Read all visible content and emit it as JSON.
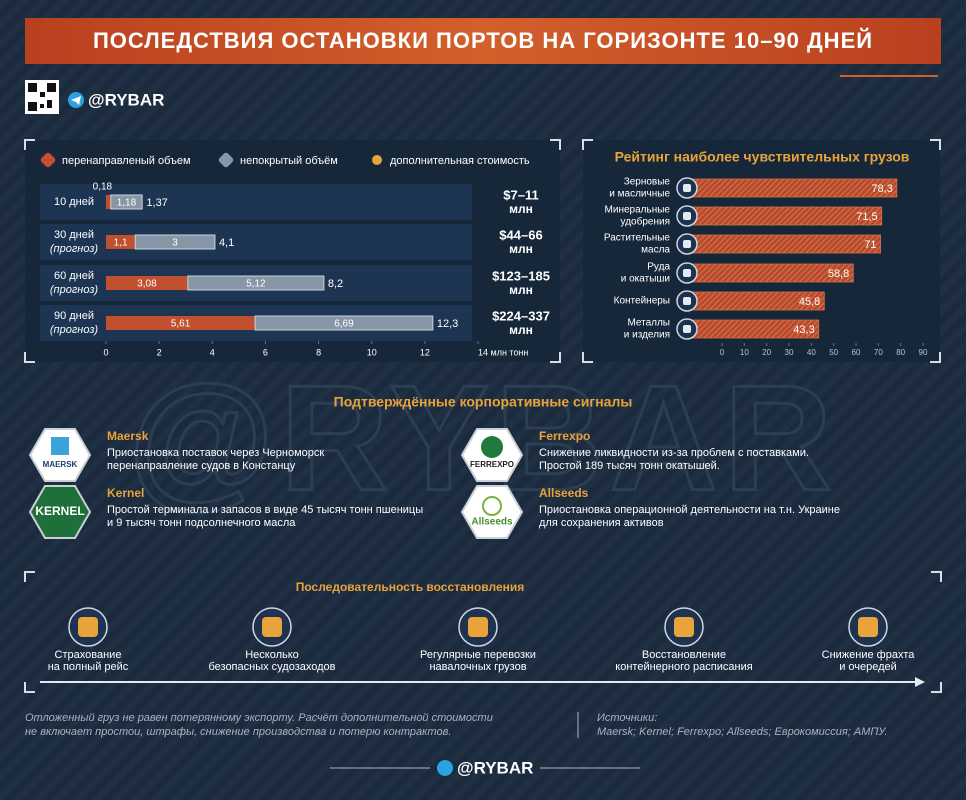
{
  "header": {
    "title": "ПОСЛЕДСТВИЯ ОСТАНОВКИ ПОРТОВ НА ГОРИЗОНТЕ 10–90 ДНЕЙ",
    "handle": "@RYBAR"
  },
  "watermark": "@RYBAR",
  "chart_data": [
    {
      "type": "bar",
      "orientation": "horizontal",
      "stacked": true,
      "categories": [
        "10 дней",
        "30 дней",
        "60 дней",
        "90 дней"
      ],
      "category_notes": [
        null,
        "(прогноз)",
        "(прогноз)",
        "(прогноз)"
      ],
      "series": [
        {
          "name": "перенаправленый объем",
          "color": "#c0502e",
          "values": [
            0.18,
            1.1,
            3.08,
            5.61
          ],
          "value_labels": [
            "0,18",
            "1,1",
            "3,08",
            "5,61"
          ]
        },
        {
          "name": "непокрытый объём",
          "color": "#8796a6",
          "values": [
            1.18,
            3,
            5.12,
            6.69
          ],
          "value_labels": [
            "1,18",
            "3",
            "5,12",
            "6,69"
          ]
        }
      ],
      "totals": [
        1.37,
        4.1,
        8.2,
        12.3
      ],
      "total_labels": [
        "1,37",
        "4,1",
        "8,2",
        "12,3"
      ],
      "extra_cost": {
        "name": "дополнительная стоимость",
        "values": [
          {
            "amount": "$7–11",
            "unit": "млн"
          },
          {
            "amount": "$44–66",
            "unit": "млн"
          },
          {
            "amount": "$123–185",
            "unit": "млн"
          },
          {
            "amount": "$224–337",
            "unit": "млн"
          }
        ]
      },
      "xlim": [
        0,
        14
      ],
      "xticks": [
        0,
        2,
        4,
        6,
        8,
        10,
        12,
        {
          "value": 14,
          "label": "14 млн тонн"
        }
      ]
    },
    {
      "type": "bar",
      "orientation": "horizontal",
      "stacked": false,
      "title": "Рейтинг наиболее чувствительных грузов",
      "categories": [
        [
          "Зерновые",
          "и масличные"
        ],
        [
          "Минеральные",
          "удобрения"
        ],
        [
          "Растительные",
          "масла"
        ],
        [
          "Руда",
          "и окатыши"
        ],
        [
          "Контейнеры"
        ],
        [
          "Металлы",
          "и изделия"
        ]
      ],
      "values": [
        78.3,
        71.5,
        71,
        58.8,
        45.8,
        43.3
      ],
      "value_labels": [
        "78,3",
        "71,5",
        "71",
        "58,8",
        "45,8",
        "43,3"
      ],
      "color": "#b5482a",
      "xlim": [
        0,
        90
      ],
      "xticks": [
        0,
        10,
        20,
        30,
        40,
        50,
        60,
        70,
        80,
        90
      ]
    }
  ],
  "signals": {
    "title": "Подтверждённые корпоративные сигналы",
    "items": [
      {
        "name": "Maersk",
        "logo": "MAERSK",
        "text": [
          "Приостановка поставок через Черноморск",
          "перенаправление судов в Констанцу"
        ]
      },
      {
        "name": "Kernel",
        "logo": "KERNEL",
        "text": [
          "Простой терминала и запасов в виде 45 тысяч тонн пшеницы",
          "и 9 тысяч тонн подсолнечного масла"
        ]
      },
      {
        "name": "Ferrexpo",
        "logo": "FERREXPO",
        "text": [
          "Снижение ликвидности из-за проблем с поставками.",
          "Простой 189 тысяч тонн окатышей."
        ]
      },
      {
        "name": "Allseeds",
        "logo": "Allseeds",
        "text": [
          "Приостановка операционной деятельности на т.н. Украине",
          "для сохранения активов"
        ]
      }
    ]
  },
  "timeline": {
    "title": "Последовательность восстановления",
    "steps": [
      [
        "Страхование",
        "на полный рейс"
      ],
      [
        "Несколько",
        "безопасных судозаходов"
      ],
      [
        "Регулярные перевозки",
        "навалочных грузов"
      ],
      [
        "Восстановление",
        "контейнерного расписания"
      ],
      [
        "Снижение фрахта",
        "и очередей"
      ]
    ]
  },
  "footer": {
    "note": [
      "Отложенный груз не равен потерянному экспорту. Расчёт дополнительной стоимости",
      "не включает простои, штрафы, снижение производства и потерю контрактов."
    ],
    "sources_title": "Источники:",
    "sources": "Maersk; Kernel; Ferrexpo; Allseeds; Еврокомиссия; АМПУ.",
    "handle": "@RYBAR"
  }
}
